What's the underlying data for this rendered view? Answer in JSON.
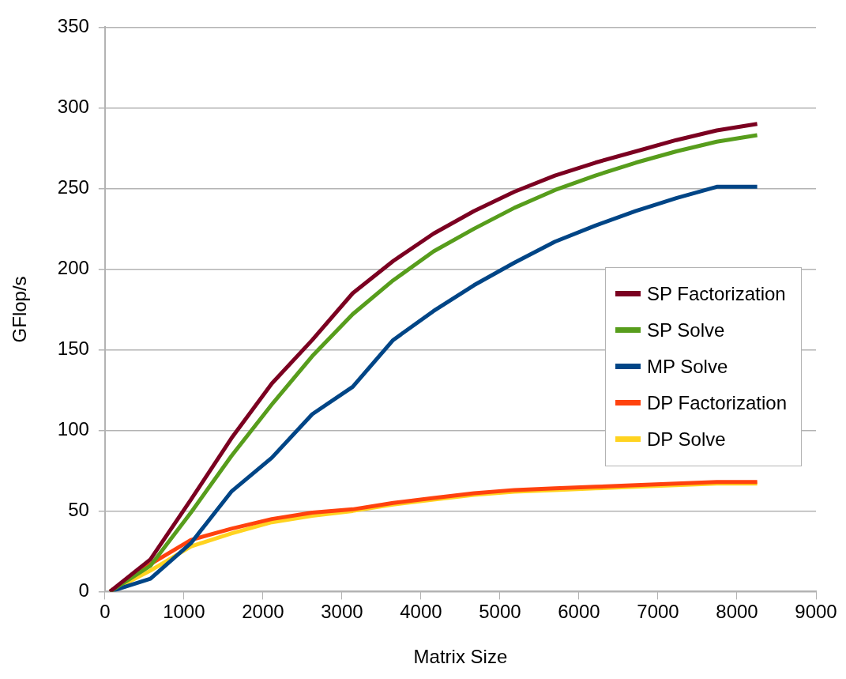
{
  "chart_data": {
    "type": "line",
    "xlabel": "Matrix Size",
    "ylabel": "GFlop/s",
    "x": [
      64,
      576,
      1088,
      1600,
      2112,
      2624,
      3136,
      3648,
      4160,
      4672,
      5184,
      5696,
      6208,
      6720,
      7232,
      7744,
      8256
    ],
    "series": [
      {
        "name": "SP Factorization",
        "color": "#7b0021",
        "values": [
          0,
          20,
          57,
          95,
          129,
          156,
          185,
          205,
          222,
          236,
          248,
          258,
          266,
          273,
          280,
          286,
          290
        ]
      },
      {
        "name": "SP Solve",
        "color": "#579d1c",
        "values": [
          0,
          16,
          49,
          84,
          116,
          146,
          172,
          193,
          211,
          225,
          238,
          249,
          258,
          266,
          273,
          279,
          283
        ]
      },
      {
        "name": "MP Solve",
        "color": "#004586",
        "values": [
          0,
          8,
          30,
          62,
          83,
          110,
          127,
          156,
          174,
          190,
          204,
          217,
          227,
          236,
          244,
          251,
          251
        ]
      },
      {
        "name": "DP Factorization",
        "color": "#ff420e",
        "values": [
          0,
          17,
          32,
          39,
          45,
          49,
          51,
          55,
          58,
          61,
          63,
          64,
          65,
          66,
          67,
          68,
          68
        ]
      },
      {
        "name": "DP Solve",
        "color": "#ffd320",
        "values": [
          0,
          13,
          28,
          36,
          43,
          47,
          50,
          54,
          57,
          60,
          62,
          63,
          64,
          65,
          66,
          67,
          67
        ]
      }
    ],
    "xlim": [
      0,
      9000
    ],
    "xticks": [
      0,
      1000,
      2000,
      3000,
      4000,
      5000,
      6000,
      7000,
      8000,
      9000
    ],
    "ylim": [
      0,
      350
    ],
    "yticks": [
      0,
      50,
      100,
      150,
      200,
      250,
      300,
      350
    ],
    "grid": "y",
    "legend": "right",
    "marker": "none",
    "line_style": "solid"
  }
}
